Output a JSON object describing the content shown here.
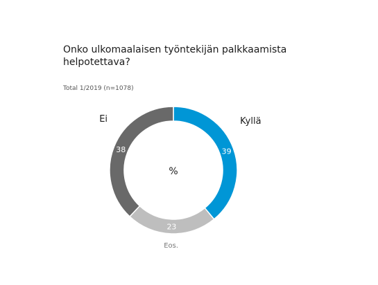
{
  "chart_data": {
    "type": "pie",
    "title": "Onko ulkomaalaisen työntekijän palkkaamista helpotettava?",
    "subtitle": "Total 1/2019 (n=1078)",
    "center_label": "%",
    "donut": true,
    "slices": [
      {
        "label": "Kyllä",
        "value": 39,
        "color": "#0096D6"
      },
      {
        "label": "Eos.",
        "value": 23,
        "color": "#BEBEBE"
      },
      {
        "label": "Ei",
        "value": 38,
        "color": "#696969"
      }
    ]
  }
}
